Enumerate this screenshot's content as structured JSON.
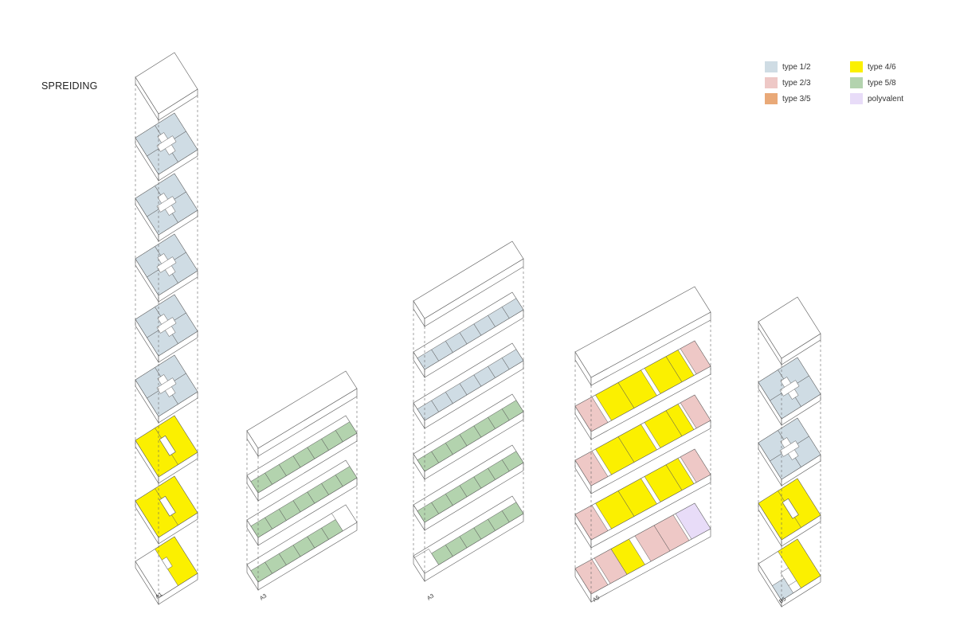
{
  "title": "SPREIDING",
  "legend": [
    {
      "key": "t12",
      "label": "type 1/2",
      "color": "#cfdce4"
    },
    {
      "key": "t23",
      "label": "type 2/3",
      "color": "#eec8c6"
    },
    {
      "key": "t35",
      "label": "type 3/5",
      "color": "#e9a978"
    },
    {
      "key": "t46",
      "label": "type 4/6",
      "color": "#fbf000"
    },
    {
      "key": "t58",
      "label": "type 5/8",
      "color": "#b3d3ae"
    },
    {
      "key": "pol",
      "label": "polyvalent",
      "color": "#e8dcf8"
    }
  ],
  "buildings": [
    {
      "label": "A1",
      "floors": [
        "t12",
        "t12",
        "t12",
        "t12",
        "t12",
        "t46",
        "t46",
        "t46"
      ]
    },
    {
      "label": "A3",
      "floors": [
        "t58",
        "t58",
        "t58"
      ]
    },
    {
      "label": "A3",
      "floors": [
        "t12",
        "t12",
        "t58",
        "t58",
        "t58"
      ]
    },
    {
      "label": "A5",
      "floors": [
        "t23/t46",
        "t23/t46",
        "t23/t46",
        "t23/t46/pol"
      ]
    },
    {
      "label": "B5",
      "floors": [
        "t12",
        "t12",
        "t46",
        "t46/t12"
      ]
    }
  ]
}
